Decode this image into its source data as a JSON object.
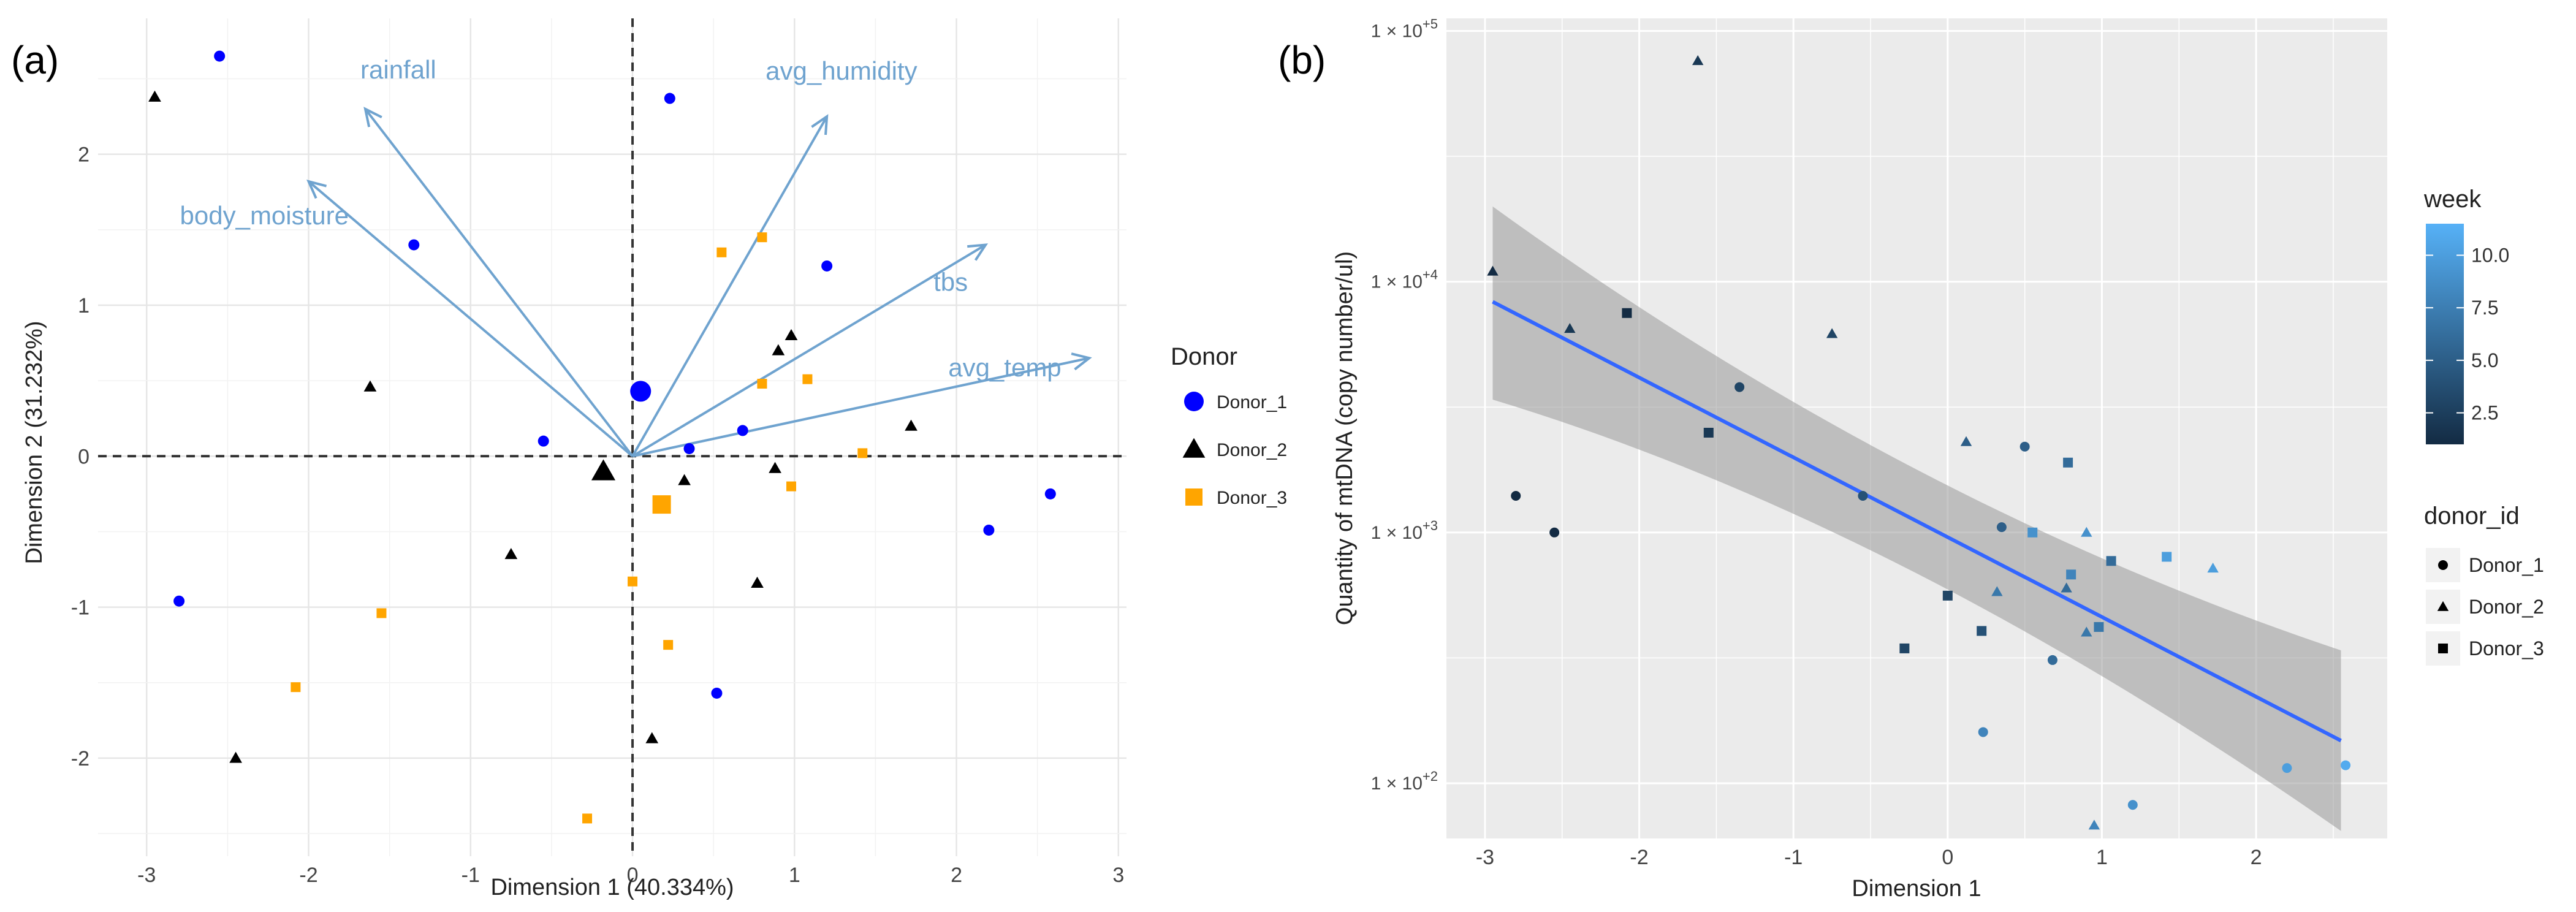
{
  "chart_data": [
    {
      "panel": "(a)",
      "type": "scatter",
      "title": "",
      "xlabel": "Dimension 1 (40.334%)",
      "ylabel": "Dimension 2 (31.232%)",
      "xlim": [
        -3.3,
        3.05
      ],
      "ylim": [
        -2.65,
        2.9
      ],
      "xticks": [
        "-3",
        "-2",
        "-1",
        "0",
        "1",
        "2",
        "3"
      ],
      "xtick_values": [
        -3,
        -2,
        -1,
        0,
        1,
        2,
        3
      ],
      "yticks": [
        "-2",
        "-1",
        "0",
        "1",
        "2"
      ],
      "ytick_values": [
        -2,
        -1,
        0,
        1,
        2
      ],
      "grid": true,
      "legend": {
        "title": "Donor",
        "position": "right",
        "entries": [
          {
            "label": "Donor_1",
            "shape": "circle",
            "color": "#0000ff"
          },
          {
            "label": "Donor_2",
            "shape": "triangle",
            "color": "#000000"
          },
          {
            "label": "Donor_3",
            "shape": "square",
            "color": "#ffa500"
          }
        ]
      },
      "vectors": [
        {
          "label": "rainfall",
          "x": -1.65,
          "y": 2.3,
          "color": "#6fa3cf"
        },
        {
          "label": "avg_humidity",
          "x": 1.2,
          "y": 2.25,
          "color": "#6fa3cf"
        },
        {
          "label": "body_moisture",
          "x": -2.0,
          "y": 1.82,
          "color": "#6fa3cf"
        },
        {
          "label": "tbs",
          "x": 2.18,
          "y": 1.4,
          "color": "#6fa3cf"
        },
        {
          "label": "avg_temp",
          "x": 2.82,
          "y": 0.65,
          "color": "#6fa3cf"
        }
      ],
      "centroids": [
        {
          "group": "Donor_1",
          "x": 0.05,
          "y": 0.43
        },
        {
          "group": "Donor_2",
          "x": -0.18,
          "y": -0.1
        },
        {
          "group": "Donor_3",
          "x": 0.18,
          "y": -0.32
        }
      ],
      "series": [
        {
          "name": "Donor_1",
          "shape": "circle",
          "color": "#0000ff",
          "points": [
            [
              -2.55,
              2.65
            ],
            [
              0.23,
              2.37
            ],
            [
              -1.35,
              1.4
            ],
            [
              1.2,
              1.26
            ],
            [
              -0.55,
              0.1
            ],
            [
              0.35,
              0.05
            ],
            [
              0.68,
              0.17
            ],
            [
              2.58,
              -0.25
            ],
            [
              2.2,
              -0.49
            ],
            [
              -2.8,
              -0.96
            ],
            [
              0.52,
              -1.57
            ]
          ]
        },
        {
          "name": "Donor_2",
          "shape": "triangle",
          "color": "#000000",
          "points": [
            [
              -2.95,
              2.38
            ],
            [
              -1.62,
              0.46
            ],
            [
              0.9,
              0.7
            ],
            [
              0.98,
              0.8
            ],
            [
              1.72,
              0.2
            ],
            [
              0.32,
              -0.16
            ],
            [
              0.88,
              -0.08
            ],
            [
              -0.75,
              -0.65
            ],
            [
              0.77,
              -0.84
            ],
            [
              0.12,
              -1.87
            ],
            [
              -2.45,
              -2.0
            ]
          ]
        },
        {
          "name": "Donor_3",
          "shape": "square",
          "color": "#ffa500",
          "points": [
            [
              0.8,
              1.45
            ],
            [
              0.55,
              1.35
            ],
            [
              0.8,
              0.48
            ],
            [
              1.08,
              0.51
            ],
            [
              1.42,
              0.02
            ],
            [
              0.98,
              -0.2
            ],
            [
              -1.55,
              -1.04
            ],
            [
              0.0,
              -0.83
            ],
            [
              0.22,
              -1.25
            ],
            [
              -2.08,
              -1.53
            ],
            [
              -0.28,
              -2.4
            ]
          ]
        }
      ]
    },
    {
      "panel": "(b)",
      "type": "scatter",
      "title": "",
      "xlabel": "Dimension 1",
      "ylabel": "Quantity of mtDNA (copy number/ul)",
      "xlim": [
        -3.25,
        2.85
      ],
      "yscale": "log10",
      "ylim": [
        1.78,
        5.05
      ],
      "xticks": [
        "-3",
        "-2",
        "-1",
        "0",
        "1",
        "2"
      ],
      "xtick_values": [
        -3,
        -2,
        -1,
        0,
        1,
        2
      ],
      "yticks": [
        {
          "base": "1 × 10",
          "exp": "+2",
          "log": 2
        },
        {
          "base": "1 × 10",
          "exp": "+3",
          "log": 3
        },
        {
          "base": "1 × 10",
          "exp": "+4",
          "log": 4
        },
        {
          "base": "1 × 10",
          "exp": "+5",
          "log": 5
        }
      ],
      "grid": true,
      "background": "#ebebeb",
      "fit": {
        "method": "linear regression on log10 scale",
        "x": [
          -2.95,
          2.55
        ],
        "y_log": [
          3.92,
          2.17
        ],
        "ci_upper_log": [
          4.3,
          2.53
        ],
        "ci_lower_log": [
          3.53,
          1.81
        ],
        "line_color": "#3366ff",
        "band_color": "#999999"
      },
      "legends": [
        {
          "title": "week",
          "type": "colorbar",
          "ticks": [
            "10.0",
            "7.5",
            "5.0",
            "2.5"
          ],
          "tick_values": [
            10.0,
            7.5,
            5.0,
            2.5
          ],
          "range": [
            1,
            11.5
          ],
          "colors": {
            "low": "#132b43",
            "high": "#56b1f7"
          }
        },
        {
          "title": "donor_id",
          "type": "shape",
          "entries": [
            {
              "label": "Donor_1",
              "shape": "circle"
            },
            {
              "label": "Donor_2",
              "shape": "triangle"
            },
            {
              "label": "Donor_3",
              "shape": "square"
            }
          ]
        }
      ],
      "points": [
        {
          "donor": "Donor_1",
          "x": -2.8,
          "y": 1400,
          "week": 1
        },
        {
          "donor": "Donor_1",
          "x": -2.55,
          "y": 1000,
          "week": 1
        },
        {
          "donor": "Donor_1",
          "x": -1.35,
          "y": 3800,
          "week": 3
        },
        {
          "donor": "Donor_1",
          "x": -0.55,
          "y": 1400,
          "week": 4
        },
        {
          "donor": "Donor_1",
          "x": 0.35,
          "y": 1050,
          "week": 5
        },
        {
          "donor": "Donor_1",
          "x": 0.5,
          "y": 2200,
          "week": 5
        },
        {
          "donor": "Donor_1",
          "x": 0.68,
          "y": 310,
          "week": 6
        },
        {
          "donor": "Donor_1",
          "x": 0.23,
          "y": 160,
          "week": 8
        },
        {
          "donor": "Donor_1",
          "x": 1.2,
          "y": 82,
          "week": 9
        },
        {
          "donor": "Donor_1",
          "x": 2.2,
          "y": 115,
          "week": 10
        },
        {
          "donor": "Donor_1",
          "x": 2.58,
          "y": 118,
          "week": 11
        },
        {
          "donor": "Donor_2",
          "x": -2.95,
          "y": 11000,
          "week": 1
        },
        {
          "donor": "Donor_2",
          "x": -2.45,
          "y": 6500,
          "week": 2
        },
        {
          "donor": "Donor_2",
          "x": -1.62,
          "y": 76000,
          "week": 2
        },
        {
          "donor": "Donor_2",
          "x": -0.75,
          "y": 6200,
          "week": 3
        },
        {
          "donor": "Donor_2",
          "x": 0.12,
          "y": 2300,
          "week": 5
        },
        {
          "donor": "Donor_2",
          "x": 0.32,
          "y": 580,
          "week": 7
        },
        {
          "donor": "Donor_2",
          "x": 0.77,
          "y": 600,
          "week": 6
        },
        {
          "donor": "Donor_2",
          "x": 0.9,
          "y": 400,
          "week": 7
        },
        {
          "donor": "Donor_2",
          "x": 0.9,
          "y": 1000,
          "week": 9
        },
        {
          "donor": "Donor_2",
          "x": 0.95,
          "y": 68,
          "week": 8
        },
        {
          "donor": "Donor_2",
          "x": 1.72,
          "y": 720,
          "week": 10
        },
        {
          "donor": "Donor_3",
          "x": -2.08,
          "y": 7500,
          "week": 1
        },
        {
          "donor": "Donor_3",
          "x": -1.55,
          "y": 2500,
          "week": 2
        },
        {
          "donor": "Donor_3",
          "x": -0.28,
          "y": 345,
          "week": 3
        },
        {
          "donor": "Donor_3",
          "x": 0.0,
          "y": 560,
          "week": 3
        },
        {
          "donor": "Donor_3",
          "x": 0.22,
          "y": 405,
          "week": 4
        },
        {
          "donor": "Donor_3",
          "x": 0.55,
          "y": 1000,
          "week": 9
        },
        {
          "donor": "Donor_3",
          "x": 0.78,
          "y": 1900,
          "week": 6
        },
        {
          "donor": "Donor_3",
          "x": 0.8,
          "y": 680,
          "week": 8
        },
        {
          "donor": "Donor_3",
          "x": 0.98,
          "y": 420,
          "week": 7
        },
        {
          "donor": "Donor_3",
          "x": 1.06,
          "y": 770,
          "week": 6
        },
        {
          "donor": "Donor_3",
          "x": 1.42,
          "y": 800,
          "week": 10
        }
      ]
    }
  ]
}
